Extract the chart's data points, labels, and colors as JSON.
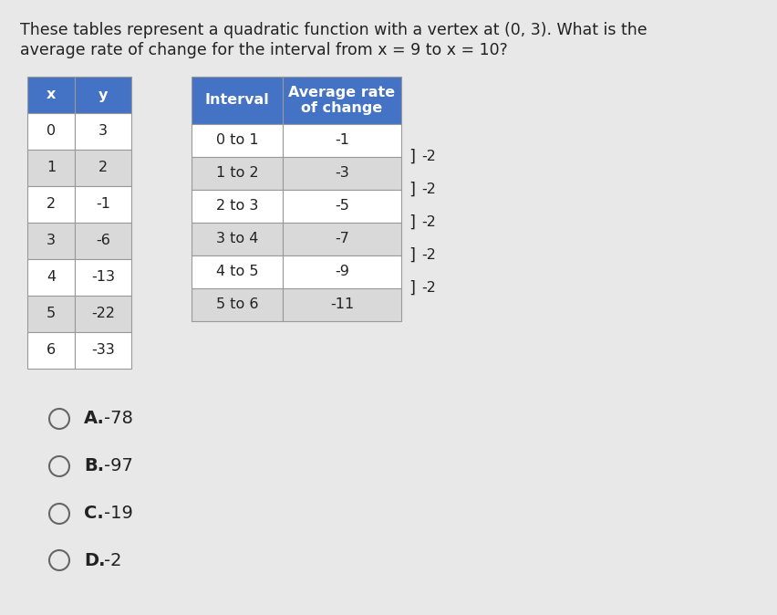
{
  "title_line1": "These tables represent a quadratic function with a vertex at (0, 3). What is the",
  "title_line2": "average rate of change for the interval from x = 9 to x = 10?",
  "table1_headers": [
    "x",
    "y"
  ],
  "table1_data": [
    [
      "0",
      "3"
    ],
    [
      "1",
      "2"
    ],
    [
      "2",
      "-1"
    ],
    [
      "3",
      "-6"
    ],
    [
      "4",
      "-13"
    ],
    [
      "5",
      "-22"
    ],
    [
      "6",
      "-33"
    ]
  ],
  "table2_header1": "Interval",
  "table2_header2": "Average rate\nof change",
  "table2_data": [
    [
      "0 to 1",
      "-1"
    ],
    [
      "1 to 2",
      "-3"
    ],
    [
      "2 to 3",
      "-5"
    ],
    [
      "3 to 4",
      "-7"
    ],
    [
      "4 to 5",
      "-9"
    ],
    [
      "5 to 6",
      "-11"
    ]
  ],
  "bracket_label": "-2",
  "bracket_count": 5,
  "choices": [
    [
      "A.",
      "-78"
    ],
    [
      "B.",
      "-97"
    ],
    [
      "C.",
      "-19"
    ],
    [
      "D.",
      "-2"
    ]
  ],
  "header_bg": "#4472C4",
  "header_text_color": "#FFFFFF",
  "cell_bg_white": "#FFFFFF",
  "cell_bg_gray": "#D9D9D9",
  "border_color": "#999999",
  "text_color": "#222222",
  "bg_color": "#E8E8E8",
  "title_fontsize": 12.5,
  "table_fontsize": 11.5,
  "choice_fontsize": 14
}
